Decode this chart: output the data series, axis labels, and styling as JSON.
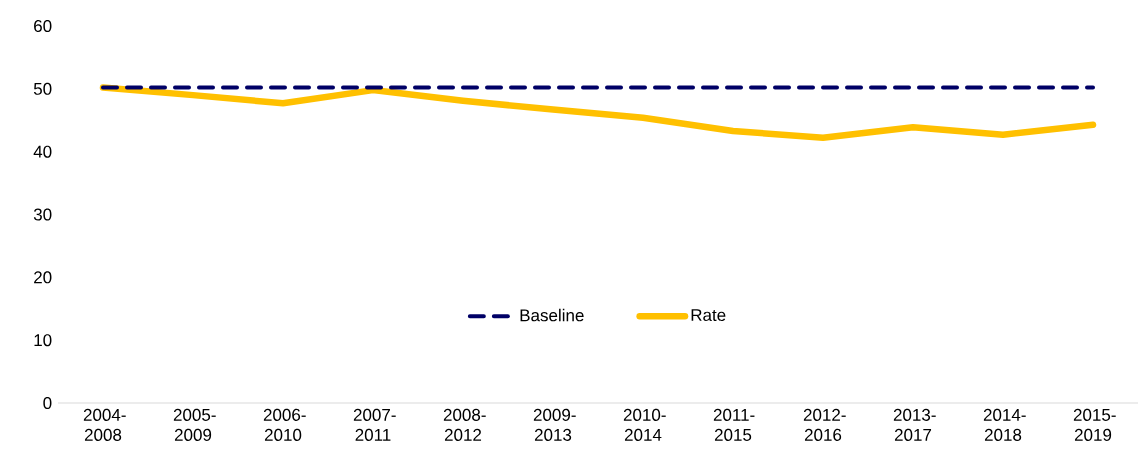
{
  "chart_data": {
    "type": "line",
    "categories": [
      "2004-2008",
      "2005-2009",
      "2006-2010",
      "2007-2011",
      "2008-2012",
      "2009-2013",
      "2010-2014",
      "2011-2015",
      "2012-2016",
      "2013-2017",
      "2014-2018",
      "2015-2019"
    ],
    "series": [
      {
        "name": "Baseline",
        "color": "#000066",
        "line_style": "dashed",
        "values": [
          50.2,
          50.2,
          50.2,
          50.2,
          50.2,
          50.2,
          50.2,
          50.2,
          50.2,
          50.2,
          50.2,
          50.2
        ]
      },
      {
        "name": "Rate",
        "color": "#ffc000",
        "line_style": "solid",
        "values": [
          50.2,
          49.0,
          47.7,
          49.8,
          48.1,
          46.7,
          45.4,
          43.3,
          42.2,
          43.9,
          42.7,
          44.3
        ]
      }
    ],
    "ylim": [
      0,
      60
    ],
    "yticks": [
      0,
      10,
      20,
      30,
      40,
      50,
      60
    ],
    "legend": "center"
  }
}
